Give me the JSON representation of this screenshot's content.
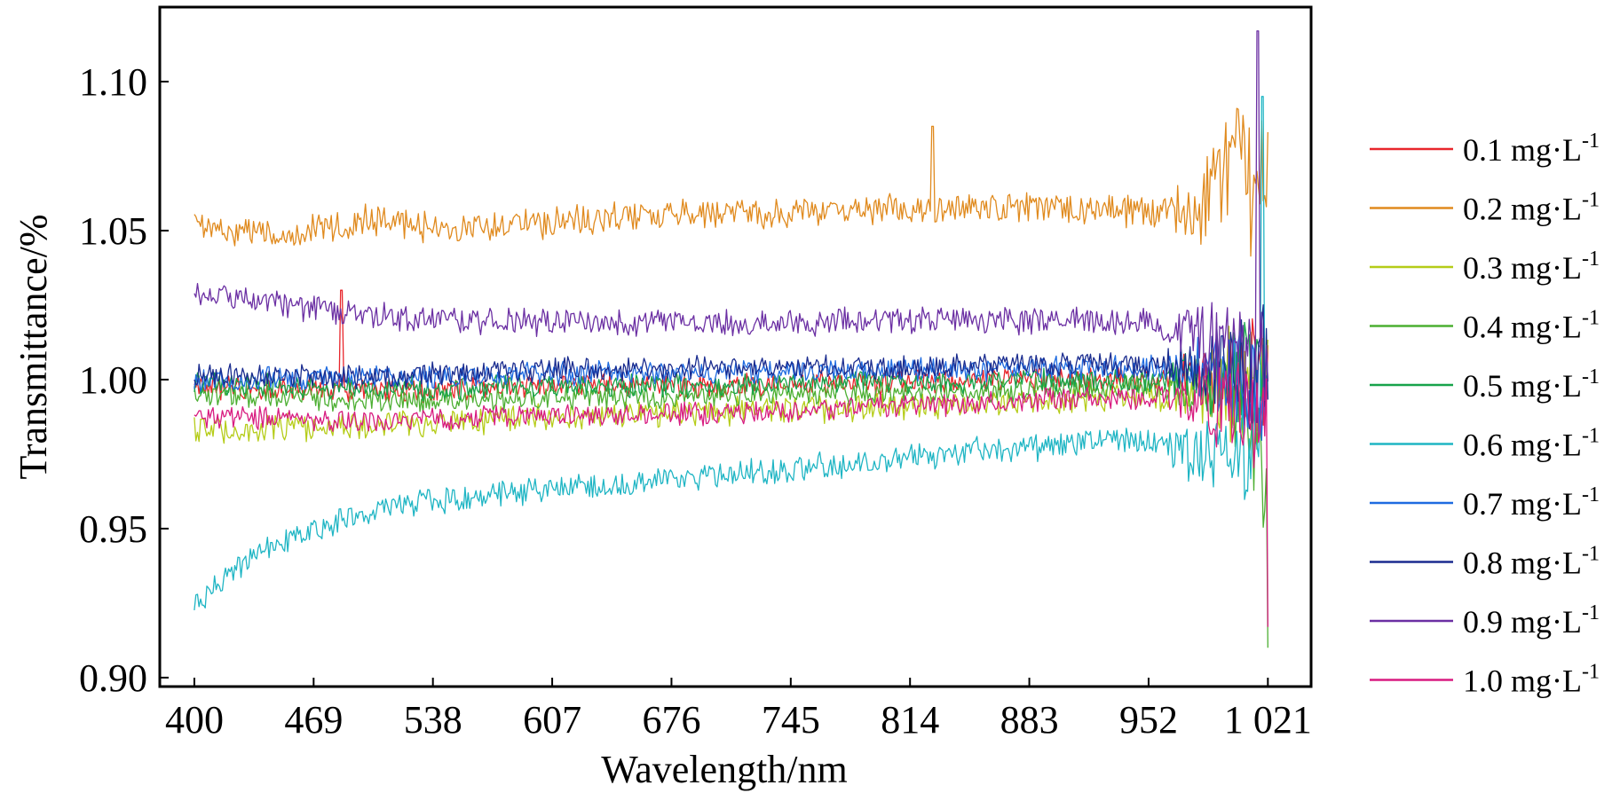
{
  "chart_data": {
    "type": "line",
    "xlabel": "Wavelength/nm",
    "ylabel": "Transmittance/%",
    "xlim": [
      380,
      1046
    ],
    "ylim": [
      0.897,
      1.125
    ],
    "x_ticks": [
      400,
      469,
      538,
      607,
      676,
      745,
      814,
      883,
      952,
      1021
    ],
    "x_tick_labels": [
      "400",
      "469",
      "538",
      "607",
      "676",
      "745",
      "814",
      "883",
      "952",
      "1 021"
    ],
    "y_ticks": [
      0.9,
      0.95,
      1.0,
      1.05,
      1.1
    ],
    "y_tick_labels": [
      "0.90",
      "0.95",
      "1.00",
      "1.05",
      "1.10"
    ],
    "grid": false,
    "legend_position": "right",
    "unit_prefix": "mg·L",
    "unit_sup": "-1",
    "series": [
      {
        "name": "0.1",
        "color": "#e8262c",
        "x": [
          400,
          450,
          500,
          550,
          600,
          650,
          700,
          750,
          800,
          850,
          900,
          950,
          980,
          1000,
          1021
        ],
        "values": [
          0.997,
          0.997,
          0.996,
          0.997,
          0.998,
          0.998,
          0.998,
          0.999,
          0.999,
          1.0,
          1.0,
          1.0,
          1.0,
          1.0,
          1.0
        ],
        "noise": 0.0035,
        "spike": {
          "x": 485,
          "value": 1.03
        }
      },
      {
        "name": "0.2",
        "color": "#e08a1e",
        "x": [
          400,
          450,
          500,
          550,
          600,
          650,
          700,
          750,
          800,
          850,
          900,
          950,
          980,
          1000,
          1021
        ],
        "values": [
          1.052,
          1.048,
          1.054,
          1.05,
          1.052,
          1.055,
          1.055,
          1.056,
          1.057,
          1.058,
          1.058,
          1.056,
          1.055,
          1.075,
          1.06
        ],
        "noise": 0.0045,
        "spike": {
          "x": 827,
          "value": 1.085
        }
      },
      {
        "name": "0.3",
        "color": "#b5cc18",
        "x": [
          400,
          450,
          500,
          550,
          600,
          650,
          700,
          750,
          800,
          850,
          900,
          950,
          980,
          1000,
          1021
        ],
        "values": [
          0.983,
          0.984,
          0.985,
          0.986,
          0.987,
          0.988,
          0.989,
          0.99,
          0.991,
          0.992,
          0.993,
          0.994,
          0.995,
          0.998,
          1.0
        ],
        "noise": 0.004,
        "spike": null
      },
      {
        "name": "0.4",
        "color": "#4caf32",
        "x": [
          400,
          450,
          500,
          550,
          600,
          650,
          700,
          750,
          800,
          850,
          900,
          950,
          980,
          1000,
          1021
        ],
        "values": [
          0.995,
          0.994,
          0.993,
          0.993,
          0.994,
          0.994,
          0.995,
          0.995,
          0.996,
          0.996,
          0.997,
          0.997,
          0.997,
          0.998,
          0.96
        ],
        "noise": 0.0035,
        "spike": {
          "x": 1021,
          "value": 0.91
        }
      },
      {
        "name": "0.5",
        "color": "#17a34a",
        "x": [
          400,
          450,
          500,
          550,
          600,
          650,
          700,
          750,
          800,
          850,
          900,
          950,
          980,
          1000,
          1021
        ],
        "values": [
          0.999,
          0.998,
          0.997,
          0.997,
          0.998,
          0.998,
          0.998,
          0.999,
          0.999,
          0.999,
          1.0,
          1.0,
          1.0,
          1.0,
          1.0
        ],
        "noise": 0.0035,
        "spike": null
      },
      {
        "name": "0.6",
        "color": "#1fb5c4",
        "x": [
          400,
          420,
          450,
          480,
          520,
          560,
          600,
          650,
          700,
          750,
          800,
          850,
          900,
          950,
          980,
          1000,
          1021
        ],
        "values": [
          0.925,
          0.935,
          0.945,
          0.952,
          0.958,
          0.96,
          0.963,
          0.965,
          0.968,
          0.97,
          0.973,
          0.976,
          0.978,
          0.98,
          0.975,
          0.97,
          0.99
        ],
        "noise": 0.004,
        "spike": {
          "x": 1018,
          "value": 1.095
        }
      },
      {
        "name": "0.7",
        "color": "#1e6be0",
        "x": [
          400,
          450,
          500,
          550,
          600,
          650,
          700,
          750,
          800,
          850,
          900,
          950,
          980,
          1000,
          1021
        ],
        "values": [
          1.0,
          1.0,
          1.001,
          1.001,
          1.002,
          1.002,
          1.002,
          1.003,
          1.003,
          1.003,
          1.004,
          1.004,
          1.003,
          1.0,
          1.0
        ],
        "noise": 0.0035,
        "spike": null
      },
      {
        "name": "0.8",
        "color": "#1a2c8f",
        "x": [
          400,
          450,
          500,
          550,
          600,
          650,
          700,
          750,
          800,
          850,
          900,
          950,
          980,
          1000,
          1021
        ],
        "values": [
          1.002,
          1.001,
          1.001,
          1.002,
          1.003,
          1.004,
          1.004,
          1.004,
          1.004,
          1.005,
          1.005,
          1.005,
          1.005,
          1.004,
          1.0
        ],
        "noise": 0.0035,
        "spike": null
      },
      {
        "name": "0.9",
        "color": "#6b2fa3",
        "x": [
          400,
          450,
          500,
          550,
          600,
          650,
          700,
          750,
          800,
          850,
          900,
          950,
          980,
          1000,
          1021
        ],
        "values": [
          1.03,
          1.025,
          1.022,
          1.02,
          1.019,
          1.019,
          1.019,
          1.019,
          1.02,
          1.02,
          1.02,
          1.02,
          1.015,
          1.01,
          1.0
        ],
        "noise": 0.004,
        "spike": {
          "x": 1015,
          "value": 1.117
        }
      },
      {
        "name": "1.0",
        "color": "#d81b80",
        "x": [
          400,
          450,
          500,
          550,
          600,
          650,
          700,
          750,
          800,
          850,
          900,
          950,
          980,
          1000,
          1021
        ],
        "values": [
          0.988,
          0.987,
          0.986,
          0.987,
          0.988,
          0.988,
          0.989,
          0.99,
          0.991,
          0.992,
          0.993,
          0.994,
          0.994,
          0.99,
          0.985
        ],
        "noise": 0.0035,
        "spike": {
          "x": 1021,
          "value": 0.917
        }
      }
    ]
  }
}
